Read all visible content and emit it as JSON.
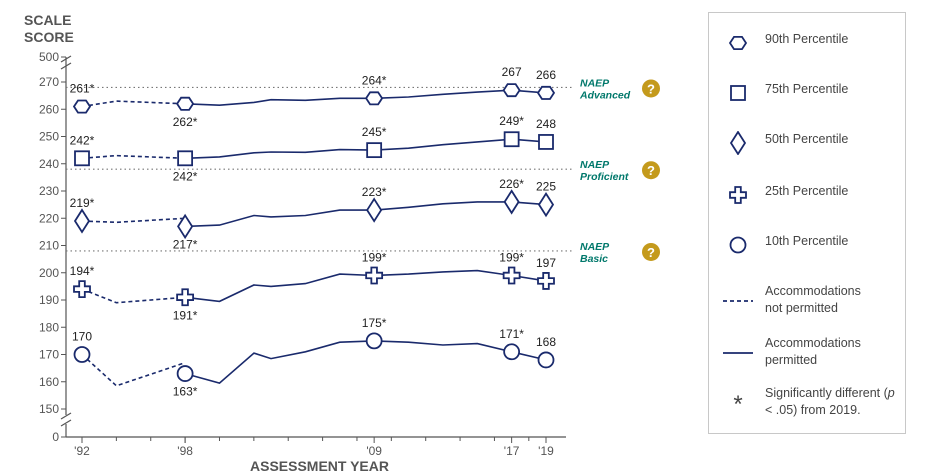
{
  "y_axis_title": "SCALE\nSCORE",
  "x_axis_title": "ASSESSMENT YEAR",
  "colors": {
    "series": "#1a2a6c",
    "axis": "#555555",
    "naep_label": "#00786b",
    "help_icon": "#c49a1c"
  },
  "naep_levels": [
    {
      "line1": "NAEP",
      "line2": "Advanced",
      "value": 268,
      "icon": "question-circle-icon"
    },
    {
      "line1": "NAEP",
      "line2": "Proficient",
      "value": 238,
      "icon": "question-circle-icon"
    },
    {
      "line1": "NAEP",
      "line2": "Basic",
      "value": 208,
      "icon": "question-circle-icon"
    }
  ],
  "legend": {
    "items": [
      {
        "symbol": "hexagon",
        "label": "90th Percentile"
      },
      {
        "symbol": "square",
        "label": "75th Percentile"
      },
      {
        "symbol": "diamond",
        "label": "50th Percentile"
      },
      {
        "symbol": "cross",
        "label": "25th Percentile"
      },
      {
        "symbol": "circle",
        "label": "10th Percentile"
      },
      {
        "symbol": "dashed-line",
        "label": "Accommodations not permitted"
      },
      {
        "symbol": "solid-line",
        "label": "Accommodations permitted"
      },
      {
        "symbol": "asterisk",
        "label": "*",
        "text_before": "Significantly different (",
        "italic": "p",
        "text_after": " < .05) from 2019."
      }
    ]
  },
  "chart_data": {
    "type": "line",
    "ylabel": "SCALE SCORE",
    "xlabel": "ASSESSMENT YEAR",
    "ylim": [
      0,
      500
    ],
    "y_ticks_main": [
      150,
      160,
      170,
      180,
      190,
      200,
      210,
      220,
      230,
      240,
      250,
      260,
      270
    ],
    "y_ticks_extra": [
      0,
      500
    ],
    "x_ticks": [
      {
        "year": 1992,
        "label": "'92"
      },
      {
        "year": 1998,
        "label": "'98"
      },
      {
        "year": 2009,
        "label": "'09"
      },
      {
        "year": 2017,
        "label": "'17"
      },
      {
        "year": 2019,
        "label": "'19"
      }
    ],
    "series": [
      {
        "name": "90th Percentile",
        "marker": "hexagon",
        "dashed": [
          [
            1992,
            261
          ],
          [
            1994,
            263
          ],
          [
            1998,
            262
          ]
        ],
        "solid": [
          [
            1998,
            262
          ],
          [
            2000,
            261.5
          ],
          [
            2002,
            262.5
          ],
          [
            2003,
            263.5
          ],
          [
            2005,
            263.3
          ],
          [
            2007,
            264
          ],
          [
            2009,
            264
          ],
          [
            2011,
            264.5
          ],
          [
            2013,
            265.5
          ],
          [
            2015,
            266.3
          ],
          [
            2017,
            267
          ],
          [
            2019,
            266
          ]
        ],
        "points": [
          {
            "year": 1992,
            "value": 261,
            "label": "261*",
            "pos": "above"
          },
          {
            "year": 1998,
            "value": 262,
            "label": "262*",
            "pos": "below"
          },
          {
            "year": 2009,
            "value": 264,
            "label": "264*",
            "pos": "above"
          },
          {
            "year": 2017,
            "value": 267,
            "label": "267",
            "pos": "above"
          },
          {
            "year": 2019,
            "value": 266,
            "label": "266",
            "pos": "above"
          }
        ]
      },
      {
        "name": "75th Percentile",
        "marker": "square",
        "dashed": [
          [
            1992,
            242
          ],
          [
            1994,
            243
          ],
          [
            1998,
            242
          ]
        ],
        "solid": [
          [
            1998,
            242
          ],
          [
            2000,
            242.5
          ],
          [
            2002,
            244
          ],
          [
            2003,
            244.3
          ],
          [
            2005,
            244.2
          ],
          [
            2007,
            245.2
          ],
          [
            2009,
            245
          ],
          [
            2011,
            245.7
          ],
          [
            2013,
            247
          ],
          [
            2015,
            248
          ],
          [
            2017,
            249
          ],
          [
            2019,
            248
          ]
        ],
        "points": [
          {
            "year": 1992,
            "value": 242,
            "label": "242*",
            "pos": "above"
          },
          {
            "year": 1998,
            "value": 242,
            "label": "242*",
            "pos": "below"
          },
          {
            "year": 2009,
            "value": 245,
            "label": "245*",
            "pos": "above"
          },
          {
            "year": 2017,
            "value": 249,
            "label": "249*",
            "pos": "above"
          },
          {
            "year": 2019,
            "value": 248,
            "label": "248",
            "pos": "above"
          }
        ]
      },
      {
        "name": "50th Percentile",
        "marker": "diamond",
        "dashed": [
          [
            1992,
            219
          ],
          [
            1994,
            218.5
          ],
          [
            1998,
            220
          ]
        ],
        "solid": [
          [
            1998,
            217
          ],
          [
            2000,
            217.5
          ],
          [
            2002,
            221
          ],
          [
            2003,
            220.5
          ],
          [
            2005,
            221
          ],
          [
            2007,
            223
          ],
          [
            2009,
            223
          ],
          [
            2011,
            224
          ],
          [
            2013,
            225.3
          ],
          [
            2015,
            226
          ],
          [
            2017,
            226
          ],
          [
            2019,
            225
          ]
        ],
        "points": [
          {
            "year": 1992,
            "value": 219,
            "label": "219*",
            "pos": "above"
          },
          {
            "year": 1998,
            "value": 217,
            "label": "217*",
            "pos": "below"
          },
          {
            "year": 2009,
            "value": 223,
            "label": "223*",
            "pos": "above"
          },
          {
            "year": 2017,
            "value": 226,
            "label": "226*",
            "pos": "above"
          },
          {
            "year": 2019,
            "value": 225,
            "label": "225",
            "pos": "above"
          }
        ]
      },
      {
        "name": "25th Percentile",
        "marker": "cross",
        "dashed": [
          [
            1992,
            194
          ],
          [
            1994,
            189
          ],
          [
            1998,
            191
          ]
        ],
        "solid": [
          [
            1998,
            191
          ],
          [
            2000,
            189.5
          ],
          [
            2002,
            195.5
          ],
          [
            2003,
            195
          ],
          [
            2005,
            196
          ],
          [
            2007,
            199.5
          ],
          [
            2009,
            199
          ],
          [
            2011,
            199.5
          ],
          [
            2013,
            200.3
          ],
          [
            2015,
            200.8
          ],
          [
            2017,
            199
          ],
          [
            2019,
            197
          ]
        ],
        "points": [
          {
            "year": 1992,
            "value": 194,
            "label": "194*",
            "pos": "above"
          },
          {
            "year": 1998,
            "value": 191,
            "label": "191*",
            "pos": "below"
          },
          {
            "year": 2009,
            "value": 199,
            "label": "199*",
            "pos": "above"
          },
          {
            "year": 2017,
            "value": 199,
            "label": "199*",
            "pos": "above"
          },
          {
            "year": 2019,
            "value": 197,
            "label": "197",
            "pos": "above"
          }
        ]
      },
      {
        "name": "10th Percentile",
        "marker": "circle",
        "dashed": [
          [
            1992,
            170
          ],
          [
            1994,
            158.5
          ],
          [
            1998,
            167
          ]
        ],
        "solid": [
          [
            1998,
            163
          ],
          [
            2000,
            159.5
          ],
          [
            2002,
            170.5
          ],
          [
            2003,
            168.5
          ],
          [
            2005,
            171
          ],
          [
            2007,
            174.5
          ],
          [
            2009,
            175
          ],
          [
            2011,
            174.5
          ],
          [
            2013,
            173.5
          ],
          [
            2015,
            174
          ],
          [
            2017,
            171
          ],
          [
            2019,
            168
          ]
        ],
        "points": [
          {
            "year": 1992,
            "value": 170,
            "label": "170",
            "pos": "above"
          },
          {
            "year": 1998,
            "value": 163,
            "label": "163*",
            "pos": "below"
          },
          {
            "year": 2009,
            "value": 175,
            "label": "175*",
            "pos": "above"
          },
          {
            "year": 2017,
            "value": 171,
            "label": "171*",
            "pos": "above"
          },
          {
            "year": 2019,
            "value": 168,
            "label": "168",
            "pos": "above"
          }
        ]
      }
    ]
  }
}
